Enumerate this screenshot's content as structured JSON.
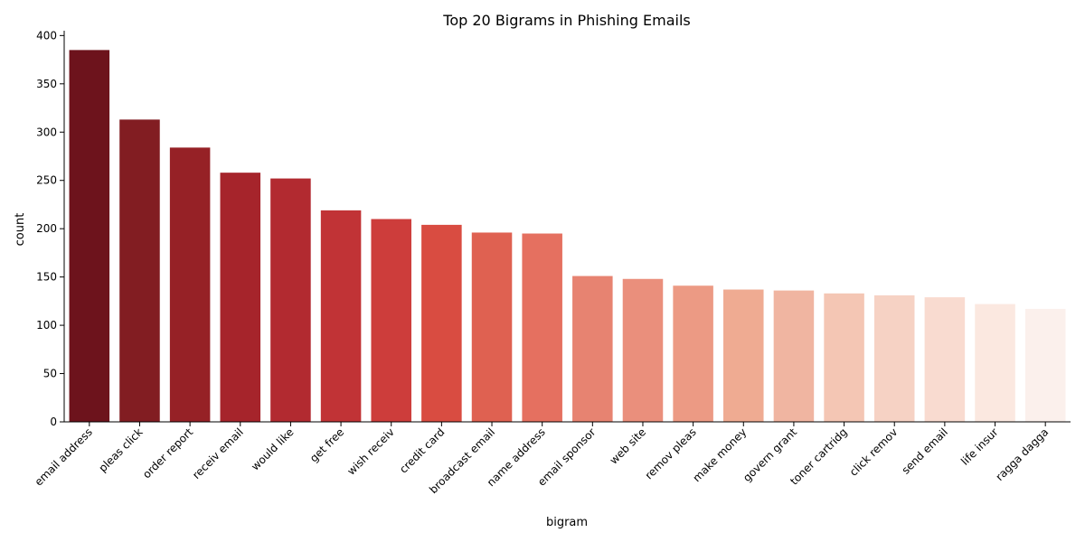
{
  "chart_data": {
    "type": "bar",
    "title": "Top 20 Bigrams in Phishing Emails",
    "xlabel": "bigram",
    "ylabel": "count",
    "ylim": [
      0,
      405
    ],
    "yticks": [
      0,
      50,
      100,
      150,
      200,
      250,
      300,
      350,
      400
    ],
    "grid": false,
    "colormap": "Reds (dark to light)",
    "categories": [
      "email address",
      "pleas click",
      "order report",
      "receiv email",
      "would like",
      "get free",
      "wish receiv",
      "credit card",
      "broadcast email",
      "name address",
      "email sponsor",
      "web site",
      "remov pleas",
      "make money",
      "govern grant",
      "toner cartridg",
      "click remov",
      "send email",
      "life insur",
      "ragga dagga"
    ],
    "values": [
      385,
      313,
      284,
      258,
      252,
      219,
      210,
      204,
      196,
      195,
      151,
      148,
      141,
      137,
      136,
      133,
      131,
      129,
      122,
      117
    ],
    "colors": [
      "#6d131c",
      "#821d22",
      "#962126",
      "#a6242b",
      "#b22a30",
      "#c13336",
      "#cd3d3b",
      "#d94c41",
      "#df6151",
      "#e57060",
      "#e78371",
      "#ea8f7c",
      "#ec9a84",
      "#efab92",
      "#f0b5a1",
      "#f4c6b4",
      "#f6d2c4",
      "#f9dbd0",
      "#fbe8e0",
      "#fbf0ec"
    ]
  }
}
